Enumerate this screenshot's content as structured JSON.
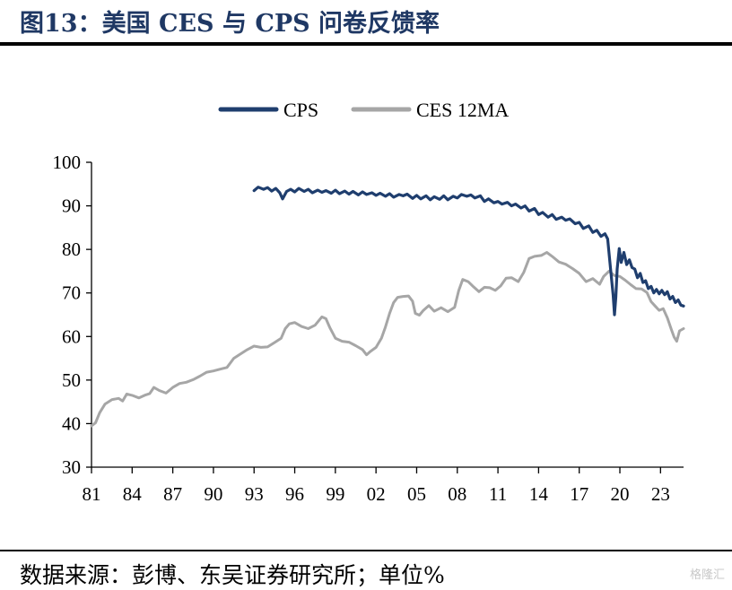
{
  "title": "图13：美国 CES 与 CPS 问卷反馈率",
  "source": "数据来源：彭博、东吴证券研究所；单位%",
  "watermark": "格隆汇",
  "chart_data": {
    "type": "line",
    "ylim": [
      30,
      100
    ],
    "yticks": [
      30,
      40,
      50,
      60,
      70,
      80,
      90,
      100
    ],
    "xlim": [
      1981,
      2024.7
    ],
    "xticks": [
      1981,
      1984,
      1987,
      1990,
      1993,
      1996,
      1999,
      2002,
      2005,
      2008,
      2011,
      2014,
      2017,
      2020,
      2023
    ],
    "xtick_labels": [
      "81",
      "84",
      "87",
      "90",
      "93",
      "96",
      "99",
      "02",
      "05",
      "08",
      "11",
      "14",
      "17",
      "20",
      "23"
    ],
    "legend_position": "top-center",
    "grid": false,
    "series": [
      {
        "name": "CPS",
        "color": "#1f3e6e",
        "points": [
          [
            1993.0,
            93.5
          ],
          [
            1993.3,
            94.3
          ],
          [
            1993.7,
            93.8
          ],
          [
            1994.0,
            94.2
          ],
          [
            1994.3,
            93.4
          ],
          [
            1994.6,
            94.0
          ],
          [
            1994.9,
            93.0
          ],
          [
            1995.1,
            91.6
          ],
          [
            1995.4,
            93.3
          ],
          [
            1995.7,
            93.8
          ],
          [
            1996.0,
            93.2
          ],
          [
            1996.3,
            94.0
          ],
          [
            1996.7,
            93.3
          ],
          [
            1997.0,
            93.8
          ],
          [
            1997.3,
            93.0
          ],
          [
            1997.7,
            93.6
          ],
          [
            1998.0,
            93.1
          ],
          [
            1998.3,
            93.5
          ],
          [
            1998.7,
            92.9
          ],
          [
            1999.0,
            93.6
          ],
          [
            1999.3,
            92.8
          ],
          [
            1999.7,
            93.4
          ],
          [
            2000.0,
            92.7
          ],
          [
            2000.3,
            93.3
          ],
          [
            2000.7,
            92.5
          ],
          [
            2001.0,
            93.2
          ],
          [
            2001.3,
            92.6
          ],
          [
            2001.7,
            93.0
          ],
          [
            2002.0,
            92.4
          ],
          [
            2002.3,
            92.9
          ],
          [
            2002.7,
            92.2
          ],
          [
            2003.0,
            92.8
          ],
          [
            2003.3,
            92.0
          ],
          [
            2003.7,
            92.6
          ],
          [
            2004.0,
            92.3
          ],
          [
            2004.3,
            92.7
          ],
          [
            2004.7,
            91.7
          ],
          [
            2005.0,
            92.4
          ],
          [
            2005.3,
            91.6
          ],
          [
            2005.7,
            92.3
          ],
          [
            2006.0,
            91.4
          ],
          [
            2006.3,
            92.1
          ],
          [
            2006.7,
            91.5
          ],
          [
            2007.0,
            92.3
          ],
          [
            2007.3,
            91.4
          ],
          [
            2007.7,
            92.2
          ],
          [
            2008.0,
            91.8
          ],
          [
            2008.3,
            92.6
          ],
          [
            2008.7,
            92.2
          ],
          [
            2009.0,
            92.5
          ],
          [
            2009.3,
            91.8
          ],
          [
            2009.7,
            92.3
          ],
          [
            2010.0,
            91.0
          ],
          [
            2010.3,
            91.6
          ],
          [
            2010.7,
            90.7
          ],
          [
            2011.0,
            91.0
          ],
          [
            2011.3,
            90.4
          ],
          [
            2011.7,
            90.8
          ],
          [
            2012.0,
            90.0
          ],
          [
            2012.3,
            90.4
          ],
          [
            2012.7,
            89.5
          ],
          [
            2013.0,
            90.0
          ],
          [
            2013.3,
            88.8
          ],
          [
            2013.7,
            89.4
          ],
          [
            2014.0,
            88.0
          ],
          [
            2014.3,
            88.5
          ],
          [
            2014.7,
            87.4
          ],
          [
            2015.0,
            88.0
          ],
          [
            2015.3,
            86.9
          ],
          [
            2015.7,
            87.4
          ],
          [
            2016.0,
            86.7
          ],
          [
            2016.3,
            87.0
          ],
          [
            2016.7,
            85.9
          ],
          [
            2017.0,
            86.2
          ],
          [
            2017.3,
            84.8
          ],
          [
            2017.7,
            85.4
          ],
          [
            2018.0,
            83.9
          ],
          [
            2018.3,
            84.4
          ],
          [
            2018.6,
            83.0
          ],
          [
            2018.9,
            83.6
          ],
          [
            2019.1,
            82.4
          ],
          [
            2019.3,
            76.0
          ],
          [
            2019.5,
            69.5
          ],
          [
            2019.6,
            65.0
          ],
          [
            2019.7,
            69.0
          ],
          [
            2019.8,
            75.5
          ],
          [
            2019.95,
            80.2
          ],
          [
            2020.1,
            77.0
          ],
          [
            2020.3,
            79.3
          ],
          [
            2020.5,
            76.5
          ],
          [
            2020.7,
            77.6
          ],
          [
            2020.9,
            75.8
          ],
          [
            2021.1,
            75.5
          ],
          [
            2021.3,
            73.5
          ],
          [
            2021.5,
            74.5
          ],
          [
            2021.7,
            72.4
          ],
          [
            2021.9,
            72.8
          ],
          [
            2022.1,
            71.0
          ],
          [
            2022.3,
            71.5
          ],
          [
            2022.5,
            70.0
          ],
          [
            2022.7,
            70.8
          ],
          [
            2022.9,
            69.8
          ],
          [
            2023.1,
            70.6
          ],
          [
            2023.3,
            69.6
          ],
          [
            2023.5,
            70.3
          ],
          [
            2023.7,
            68.6
          ],
          [
            2023.9,
            69.2
          ],
          [
            2024.1,
            67.8
          ],
          [
            2024.3,
            68.4
          ],
          [
            2024.5,
            67.2
          ],
          [
            2024.7,
            67.0
          ]
        ]
      },
      {
        "name": "CES 12MA",
        "color": "#a6a6a6",
        "points": [
          [
            1981.0,
            39.5
          ],
          [
            1981.3,
            40.2
          ],
          [
            1981.6,
            42.5
          ],
          [
            1982.0,
            44.5
          ],
          [
            1982.5,
            45.5
          ],
          [
            1983.0,
            45.8
          ],
          [
            1983.3,
            45.2
          ],
          [
            1983.6,
            46.8
          ],
          [
            1984.0,
            46.5
          ],
          [
            1984.5,
            45.9
          ],
          [
            1985.0,
            46.6
          ],
          [
            1985.3,
            46.9
          ],
          [
            1985.6,
            48.3
          ],
          [
            1986.0,
            47.6
          ],
          [
            1986.5,
            47.0
          ],
          [
            1987.0,
            48.3
          ],
          [
            1987.5,
            49.2
          ],
          [
            1988.0,
            49.5
          ],
          [
            1988.5,
            50.1
          ],
          [
            1989.0,
            50.9
          ],
          [
            1989.5,
            51.8
          ],
          [
            1990.0,
            52.1
          ],
          [
            1990.5,
            52.5
          ],
          [
            1991.0,
            52.9
          ],
          [
            1991.5,
            55.0
          ],
          [
            1992.0,
            56.0
          ],
          [
            1992.5,
            57.0
          ],
          [
            1993.0,
            57.8
          ],
          [
            1993.5,
            57.5
          ],
          [
            1994.0,
            57.6
          ],
          [
            1994.5,
            58.6
          ],
          [
            1995.0,
            59.6
          ],
          [
            1995.3,
            61.8
          ],
          [
            1995.6,
            62.9
          ],
          [
            1996.0,
            63.2
          ],
          [
            1996.5,
            62.3
          ],
          [
            1997.0,
            61.8
          ],
          [
            1997.5,
            62.6
          ],
          [
            1998.0,
            64.5
          ],
          [
            1998.3,
            64.1
          ],
          [
            1998.6,
            62.0
          ],
          [
            1999.0,
            59.6
          ],
          [
            1999.5,
            58.9
          ],
          [
            2000.0,
            58.7
          ],
          [
            2000.5,
            57.9
          ],
          [
            2001.0,
            57.0
          ],
          [
            2001.3,
            55.8
          ],
          [
            2001.6,
            56.6
          ],
          [
            2002.0,
            57.5
          ],
          [
            2002.4,
            59.6
          ],
          [
            2002.7,
            62.2
          ],
          [
            2003.0,
            65.3
          ],
          [
            2003.3,
            67.8
          ],
          [
            2003.6,
            69.0
          ],
          [
            2004.0,
            69.2
          ],
          [
            2004.4,
            69.3
          ],
          [
            2004.7,
            68.1
          ],
          [
            2004.9,
            65.3
          ],
          [
            2005.2,
            64.9
          ],
          [
            2005.5,
            66.0
          ],
          [
            2005.9,
            67.1
          ],
          [
            2006.3,
            65.8
          ],
          [
            2006.8,
            66.6
          ],
          [
            2007.3,
            65.7
          ],
          [
            2007.8,
            66.7
          ],
          [
            2008.1,
            70.5
          ],
          [
            2008.4,
            73.1
          ],
          [
            2008.8,
            72.6
          ],
          [
            2009.2,
            71.4
          ],
          [
            2009.6,
            70.3
          ],
          [
            2010.0,
            71.3
          ],
          [
            2010.4,
            71.2
          ],
          [
            2010.8,
            70.6
          ],
          [
            2011.2,
            71.6
          ],
          [
            2011.6,
            73.4
          ],
          [
            2012.0,
            73.5
          ],
          [
            2012.5,
            72.6
          ],
          [
            2012.9,
            74.7
          ],
          [
            2013.3,
            77.9
          ],
          [
            2013.7,
            78.4
          ],
          [
            2014.2,
            78.6
          ],
          [
            2014.6,
            79.3
          ],
          [
            2015.0,
            78.4
          ],
          [
            2015.5,
            77.1
          ],
          [
            2016.0,
            76.6
          ],
          [
            2016.5,
            75.6
          ],
          [
            2017.0,
            74.5
          ],
          [
            2017.5,
            72.6
          ],
          [
            2018.0,
            73.3
          ],
          [
            2018.5,
            72.0
          ],
          [
            2018.8,
            73.8
          ],
          [
            2019.2,
            75.0
          ],
          [
            2019.6,
            74.0
          ],
          [
            2020.0,
            73.8
          ],
          [
            2020.4,
            72.9
          ],
          [
            2020.8,
            71.9
          ],
          [
            2021.2,
            71.0
          ],
          [
            2021.6,
            70.9
          ],
          [
            2022.0,
            70.1
          ],
          [
            2022.3,
            68.0
          ],
          [
            2022.6,
            67.0
          ],
          [
            2022.9,
            66.0
          ],
          [
            2023.2,
            66.4
          ],
          [
            2023.5,
            64.3
          ],
          [
            2023.8,
            61.6
          ],
          [
            2024.0,
            59.9
          ],
          [
            2024.2,
            58.9
          ],
          [
            2024.4,
            61.3
          ],
          [
            2024.7,
            61.8
          ]
        ]
      }
    ]
  }
}
